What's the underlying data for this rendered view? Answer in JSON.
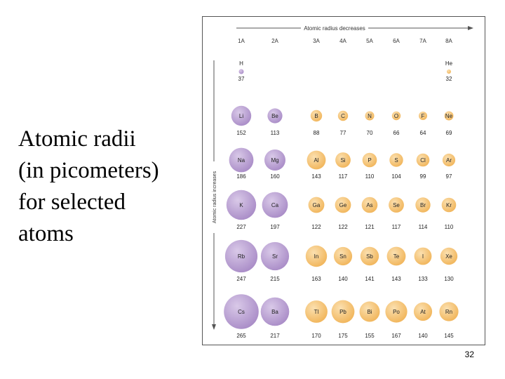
{
  "caption": {
    "lines": [
      "Atomic radii",
      "(in picometers)",
      "for selected",
      "atoms"
    ]
  },
  "figure": {
    "top_arrow_label": "Atomic radius decreases",
    "side_arrow_label": "Atomic radius increases",
    "groups": [
      "1A",
      "2A",
      "3A",
      "4A",
      "5A",
      "6A",
      "7A",
      "8A"
    ],
    "colors": {
      "s_block": "#a98cc7",
      "s_block_light": "#d9c9e8",
      "p_block": "#f1b55a",
      "p_block_light": "#fbe0b0",
      "border": "#555555"
    }
  },
  "chart_data": {
    "type": "table",
    "unit": "pm",
    "elements": [
      {
        "symbol": "H",
        "radius": 37,
        "group": "1A",
        "period": 1
      },
      {
        "symbol": "He",
        "radius": 32,
        "group": "8A",
        "period": 1
      },
      {
        "symbol": "Li",
        "radius": 152,
        "group": "1A",
        "period": 2
      },
      {
        "symbol": "Be",
        "radius": 113,
        "group": "2A",
        "period": 2
      },
      {
        "symbol": "B",
        "radius": 88,
        "group": "3A",
        "period": 2
      },
      {
        "symbol": "C",
        "radius": 77,
        "group": "4A",
        "period": 2
      },
      {
        "symbol": "N",
        "radius": 70,
        "group": "5A",
        "period": 2
      },
      {
        "symbol": "O",
        "radius": 66,
        "group": "6A",
        "period": 2
      },
      {
        "symbol": "F",
        "radius": 64,
        "group": "7A",
        "period": 2
      },
      {
        "symbol": "Ne",
        "radius": 69,
        "group": "8A",
        "period": 2
      },
      {
        "symbol": "Na",
        "radius": 186,
        "group": "1A",
        "period": 3
      },
      {
        "symbol": "Mg",
        "radius": 160,
        "group": "2A",
        "period": 3
      },
      {
        "symbol": "Al",
        "radius": 143,
        "group": "3A",
        "period": 3
      },
      {
        "symbol": "Si",
        "radius": 117,
        "group": "4A",
        "period": 3
      },
      {
        "symbol": "P",
        "radius": 110,
        "group": "5A",
        "period": 3
      },
      {
        "symbol": "S",
        "radius": 104,
        "group": "6A",
        "period": 3
      },
      {
        "symbol": "Cl",
        "radius": 99,
        "group": "7A",
        "period": 3
      },
      {
        "symbol": "Ar",
        "radius": 97,
        "group": "8A",
        "period": 3
      },
      {
        "symbol": "K",
        "radius": 227,
        "group": "1A",
        "period": 4
      },
      {
        "symbol": "Ca",
        "radius": 197,
        "group": "2A",
        "period": 4
      },
      {
        "symbol": "Ga",
        "radius": 122,
        "group": "3A",
        "period": 4
      },
      {
        "symbol": "Ge",
        "radius": 122,
        "group": "4A",
        "period": 4
      },
      {
        "symbol": "As",
        "radius": 121,
        "group": "5A",
        "period": 4
      },
      {
        "symbol": "Se",
        "radius": 117,
        "group": "6A",
        "period": 4
      },
      {
        "symbol": "Br",
        "radius": 114,
        "group": "7A",
        "period": 4
      },
      {
        "symbol": "Kr",
        "radius": 110,
        "group": "8A",
        "period": 4
      },
      {
        "symbol": "Rb",
        "radius": 247,
        "group": "1A",
        "period": 5
      },
      {
        "symbol": "Sr",
        "radius": 215,
        "group": "2A",
        "period": 5
      },
      {
        "symbol": "In",
        "radius": 163,
        "group": "3A",
        "period": 5
      },
      {
        "symbol": "Sn",
        "radius": 140,
        "group": "4A",
        "period": 5
      },
      {
        "symbol": "Sb",
        "radius": 141,
        "group": "5A",
        "period": 5
      },
      {
        "symbol": "Te",
        "radius": 143,
        "group": "6A",
        "period": 5
      },
      {
        "symbol": "I",
        "radius": 133,
        "group": "7A",
        "period": 5
      },
      {
        "symbol": "Xe",
        "radius": 130,
        "group": "8A",
        "period": 5
      },
      {
        "symbol": "Cs",
        "radius": 265,
        "group": "1A",
        "period": 6
      },
      {
        "symbol": "Ba",
        "radius": 217,
        "group": "2A",
        "period": 6
      },
      {
        "symbol": "Tl",
        "radius": 170,
        "group": "3A",
        "period": 6
      },
      {
        "symbol": "Pb",
        "radius": 175,
        "group": "4A",
        "period": 6
      },
      {
        "symbol": "Bi",
        "radius": 155,
        "group": "5A",
        "period": 6
      },
      {
        "symbol": "Po",
        "radius": 167,
        "group": "6A",
        "period": 6
      },
      {
        "symbol": "At",
        "radius": 140,
        "group": "7A",
        "period": 6
      },
      {
        "symbol": "Rn",
        "radius": 145,
        "group": "8A",
        "period": 6
      }
    ]
  },
  "slide_number": "32"
}
